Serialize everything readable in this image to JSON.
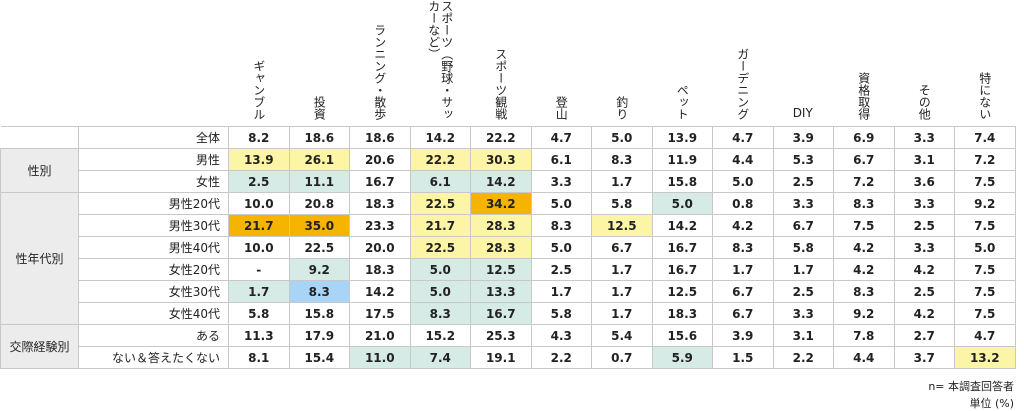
{
  "chart_data": {
    "type": "table",
    "columns": [
      "ギャンブル",
      "投資",
      "ランニング・散歩",
      "スポーツ（野球・サッカーなど）",
      "スポーツ観戦",
      "登山",
      "釣り",
      "ペット",
      "ガーデニング",
      "DIY",
      "資格取得",
      "その他",
      "特にない"
    ],
    "groups": [
      {
        "label": "",
        "rows": [
          {
            "label": "全体",
            "values": [
              "8.2",
              "18.6",
              "18.6",
              "14.2",
              "22.2",
              "4.7",
              "5.0",
              "13.9",
              "4.7",
              "3.9",
              "6.9",
              "3.3",
              "7.4"
            ]
          }
        ]
      },
      {
        "label": "性別",
        "rows": [
          {
            "label": "男性",
            "values": [
              "13.9",
              "26.1",
              "20.6",
              "22.2",
              "30.3",
              "6.1",
              "8.3",
              "11.9",
              "4.4",
              "5.3",
              "6.7",
              "3.1",
              "7.2"
            ]
          },
          {
            "label": "女性",
            "values": [
              "2.5",
              "11.1",
              "16.7",
              "6.1",
              "14.2",
              "3.3",
              "1.7",
              "15.8",
              "5.0",
              "2.5",
              "7.2",
              "3.6",
              "7.5"
            ]
          }
        ]
      },
      {
        "label": "性年代別",
        "rows": [
          {
            "label": "男性20代",
            "values": [
              "10.0",
              "20.8",
              "18.3",
              "22.5",
              "34.2",
              "5.0",
              "5.8",
              "5.0",
              "0.8",
              "3.3",
              "8.3",
              "3.3",
              "9.2"
            ]
          },
          {
            "label": "男性30代",
            "values": [
              "21.7",
              "35.0",
              "23.3",
              "21.7",
              "28.3",
              "8.3",
              "12.5",
              "14.2",
              "4.2",
              "6.7",
              "7.5",
              "2.5",
              "7.5"
            ]
          },
          {
            "label": "男性40代",
            "values": [
              "10.0",
              "22.5",
              "20.0",
              "22.5",
              "28.3",
              "5.0",
              "6.7",
              "16.7",
              "8.3",
              "5.8",
              "4.2",
              "3.3",
              "5.0"
            ]
          },
          {
            "label": "女性20代",
            "values": [
              "-",
              "9.2",
              "18.3",
              "5.0",
              "12.5",
              "2.5",
              "1.7",
              "16.7",
              "1.7",
              "1.7",
              "4.2",
              "4.2",
              "7.5"
            ]
          },
          {
            "label": "女性30代",
            "values": [
              "1.7",
              "8.3",
              "14.2",
              "5.0",
              "13.3",
              "1.7",
              "1.7",
              "12.5",
              "6.7",
              "2.5",
              "8.3",
              "2.5",
              "7.5"
            ]
          },
          {
            "label": "女性40代",
            "values": [
              "5.8",
              "15.8",
              "17.5",
              "8.3",
              "16.7",
              "5.8",
              "1.7",
              "18.3",
              "6.7",
              "3.3",
              "9.2",
              "4.2",
              "7.5"
            ]
          }
        ]
      },
      {
        "label": "交際経験別",
        "rows": [
          {
            "label": "ある",
            "values": [
              "11.3",
              "17.9",
              "21.0",
              "15.2",
              "25.3",
              "4.3",
              "5.4",
              "15.6",
              "3.9",
              "3.1",
              "7.8",
              "2.7",
              "4.7"
            ]
          },
          {
            "label": "ない＆答えたくない",
            "values": [
              "8.1",
              "15.4",
              "11.0",
              "7.4",
              "19.1",
              "2.2",
              "0.7",
              "5.9",
              "1.5",
              "2.2",
              "4.4",
              "3.7",
              "13.2"
            ]
          }
        ]
      }
    ],
    "highlights": [
      {
        "row": "男性",
        "col": 0,
        "color": "#fdf5a6"
      },
      {
        "row": "男性",
        "col": 1,
        "color": "#fdf5a6"
      },
      {
        "row": "男性",
        "col": 3,
        "color": "#fdf5a6"
      },
      {
        "row": "男性",
        "col": 4,
        "color": "#fdf5a6"
      },
      {
        "row": "女性",
        "col": 0,
        "color": "#d6ebe6"
      },
      {
        "row": "女性",
        "col": 1,
        "color": "#d6ebe6"
      },
      {
        "row": "女性",
        "col": 3,
        "color": "#d6ebe6"
      },
      {
        "row": "女性",
        "col": 4,
        "color": "#d6ebe6"
      },
      {
        "row": "男性20代",
        "col": 3,
        "color": "#fdf5a6"
      },
      {
        "row": "男性20代",
        "col": 4,
        "color": "#f5b400"
      },
      {
        "row": "男性20代",
        "col": 7,
        "color": "#d6ebe6"
      },
      {
        "row": "男性30代",
        "col": 0,
        "color": "#f5b400"
      },
      {
        "row": "男性30代",
        "col": 1,
        "color": "#f5b400"
      },
      {
        "row": "男性30代",
        "col": 3,
        "color": "#fdf5a6"
      },
      {
        "row": "男性30代",
        "col": 4,
        "color": "#fdf5a6"
      },
      {
        "row": "男性30代",
        "col": 6,
        "color": "#fdf5a6"
      },
      {
        "row": "男性40代",
        "col": 3,
        "color": "#fdf5a6"
      },
      {
        "row": "男性40代",
        "col": 4,
        "color": "#fdf5a6"
      },
      {
        "row": "女性20代",
        "col": 1,
        "color": "#d6ebe6"
      },
      {
        "row": "女性20代",
        "col": 3,
        "color": "#d6ebe6"
      },
      {
        "row": "女性20代",
        "col": 4,
        "color": "#d6ebe6"
      },
      {
        "row": "女性30代",
        "col": 0,
        "color": "#d6ebe6"
      },
      {
        "row": "女性30代",
        "col": 1,
        "color": "#a8d4f5"
      },
      {
        "row": "女性30代",
        "col": 3,
        "color": "#d6ebe6"
      },
      {
        "row": "女性30代",
        "col": 4,
        "color": "#d6ebe6"
      },
      {
        "row": "女性40代",
        "col": 3,
        "color": "#d6ebe6"
      },
      {
        "row": "女性40代",
        "col": 4,
        "color": "#d6ebe6"
      },
      {
        "row": "ない＆答えたくない",
        "col": 2,
        "color": "#d6ebe6"
      },
      {
        "row": "ない＆答えたくない",
        "col": 3,
        "color": "#d6ebe6"
      },
      {
        "row": "ない＆答えたくない",
        "col": 7,
        "color": "#d6ebe6"
      },
      {
        "row": "ない＆答えたくない",
        "col": 12,
        "color": "#fdf5a6"
      }
    ]
  },
  "footer": {
    "note": "n= 本調査回答者",
    "unit": "単位 (%)"
  }
}
